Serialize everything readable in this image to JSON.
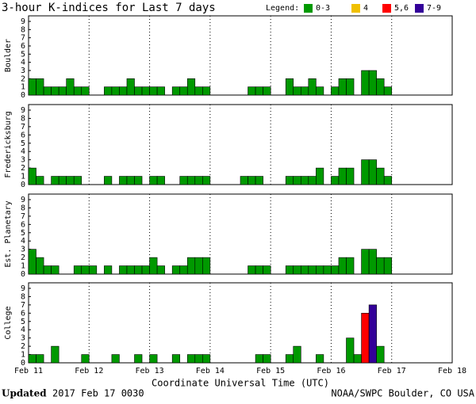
{
  "title": "3-hour K-indices for Last 7 days",
  "legend": {
    "title": "Legend:",
    "items": [
      {
        "label": "0-3",
        "color": "#009900"
      },
      {
        "label": "4",
        "color": "#f0c000"
      },
      {
        "label": "5,6",
        "color": "#ff0000"
      },
      {
        "label": "7-9",
        "color": "#330099"
      }
    ]
  },
  "chart_data": [
    {
      "type": "bar",
      "ylabel": "Boulder",
      "color": "#009900",
      "ylim": [
        0,
        9
      ],
      "yticks": [
        0,
        1,
        2,
        3,
        4,
        5,
        6,
        7,
        8,
        9
      ],
      "values": [
        2,
        2,
        1,
        1,
        1,
        2,
        1,
        1,
        0,
        0,
        1,
        1,
        1,
        2,
        1,
        1,
        1,
        1,
        0,
        1,
        1,
        2,
        1,
        1,
        0,
        0,
        0,
        0,
        0,
        1,
        1,
        1,
        0,
        0,
        2,
        1,
        1,
        2,
        1,
        0,
        1,
        2,
        2,
        0,
        3,
        3,
        2,
        1,
        0,
        0,
        0,
        0,
        0,
        0,
        0,
        0
      ]
    },
    {
      "type": "bar",
      "ylabel": "Fredericksburg",
      "color": "#009900",
      "ylim": [
        0,
        9
      ],
      "yticks": [
        0,
        1,
        2,
        3,
        4,
        5,
        6,
        7,
        8,
        9
      ],
      "values": [
        2,
        1,
        0,
        1,
        1,
        1,
        1,
        0,
        0,
        0,
        1,
        0,
        1,
        1,
        1,
        0,
        1,
        1,
        0,
        0,
        1,
        1,
        1,
        1,
        0,
        0,
        0,
        0,
        1,
        1,
        1,
        0,
        0,
        0,
        1,
        1,
        1,
        1,
        2,
        0,
        1,
        2,
        2,
        0,
        3,
        3,
        2,
        1,
        0,
        0,
        0,
        0,
        0,
        0,
        0,
        0
      ]
    },
    {
      "type": "bar",
      "ylabel": "Est. Planetary",
      "color": "#009900",
      "ylim": [
        0,
        9
      ],
      "yticks": [
        0,
        1,
        2,
        3,
        4,
        5,
        6,
        7,
        8,
        9
      ],
      "values": [
        3,
        2,
        1,
        1,
        0,
        0,
        1,
        1,
        1,
        0,
        1,
        0,
        1,
        1,
        1,
        1,
        2,
        1,
        0,
        1,
        1,
        2,
        2,
        2,
        0,
        0,
        0,
        0,
        0,
        1,
        1,
        1,
        0,
        0,
        1,
        1,
        1,
        1,
        1,
        1,
        1,
        2,
        2,
        0,
        3,
        3,
        2,
        2,
        0,
        0,
        0,
        0,
        0,
        0,
        0,
        0
      ]
    },
    {
      "type": "bar",
      "ylabel": "College",
      "color": "#009900",
      "ylim": [
        0,
        9
      ],
      "yticks": [
        0,
        1,
        2,
        3,
        4,
        5,
        6,
        7,
        8,
        9
      ],
      "values": [
        1,
        1,
        0,
        2,
        0,
        0,
        0,
        1,
        0,
        0,
        0,
        1,
        0,
        0,
        1,
        0,
        1,
        0,
        0,
        1,
        0,
        1,
        1,
        1,
        0,
        0,
        0,
        0,
        0,
        0,
        1,
        1,
        0,
        0,
        1,
        2,
        0,
        0,
        1,
        0,
        0,
        0,
        3,
        1,
        6,
        7,
        2,
        0,
        0,
        0,
        0,
        0,
        0,
        0,
        0,
        0
      ],
      "colors": {
        "44": "#ff0000",
        "45": "#330099"
      },
      "xticks": [
        "Feb 11",
        "Feb 12",
        "Feb 13",
        "Feb 14",
        "Feb 15",
        "Feb 16",
        "Feb 17",
        "Feb 18"
      ],
      "xlabel": "Coordinate Universal Time (UTC)"
    }
  ],
  "footer": {
    "updated_label": "Updated",
    "updated": "2017 Feb 17 0030",
    "credit": "NOAA/SWPC Boulder, CO USA"
  }
}
